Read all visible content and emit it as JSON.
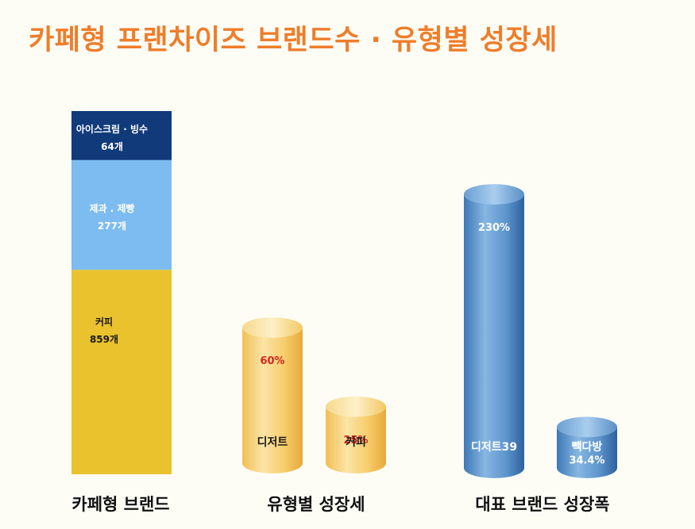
{
  "title": "카페형 프랜차이즈 브랜드수 · 유형별 성장세",
  "chart_data": [
    {
      "type": "bar",
      "name": "카페형 브랜드",
      "stacked": true,
      "segments": [
        {
          "label": "커피",
          "value": 859,
          "value_text": "859개",
          "color": "#e9c22e"
        },
        {
          "label": "제과 . 제빵",
          "value": 277,
          "value_text": "277개",
          "color": "#7cbcf0"
        },
        {
          "label": "아이스크림 · 빙수",
          "value": 64,
          "value_text": "64개",
          "color": "#103a7a"
        }
      ]
    },
    {
      "type": "bar",
      "name": "유형별 성장세",
      "style": "cylinder",
      "bars": [
        {
          "label": "디저트",
          "value": 60,
          "value_text": "60%"
        },
        {
          "label": "커피",
          "value": 25,
          "value_text": "25%"
        }
      ],
      "colors": {
        "body": "#f4c55a",
        "value_text": "#d1281e"
      }
    },
    {
      "type": "bar",
      "name": "대표 브랜드 성장폭",
      "style": "cylinder",
      "bars": [
        {
          "label": "디저트39",
          "value": 230,
          "value_text": "230%"
        },
        {
          "label": "빽다방",
          "value": 34.4,
          "value_text": "34.4%"
        }
      ],
      "colors": {
        "body": "#4f88c4",
        "value_text": "#ffffff"
      }
    }
  ]
}
